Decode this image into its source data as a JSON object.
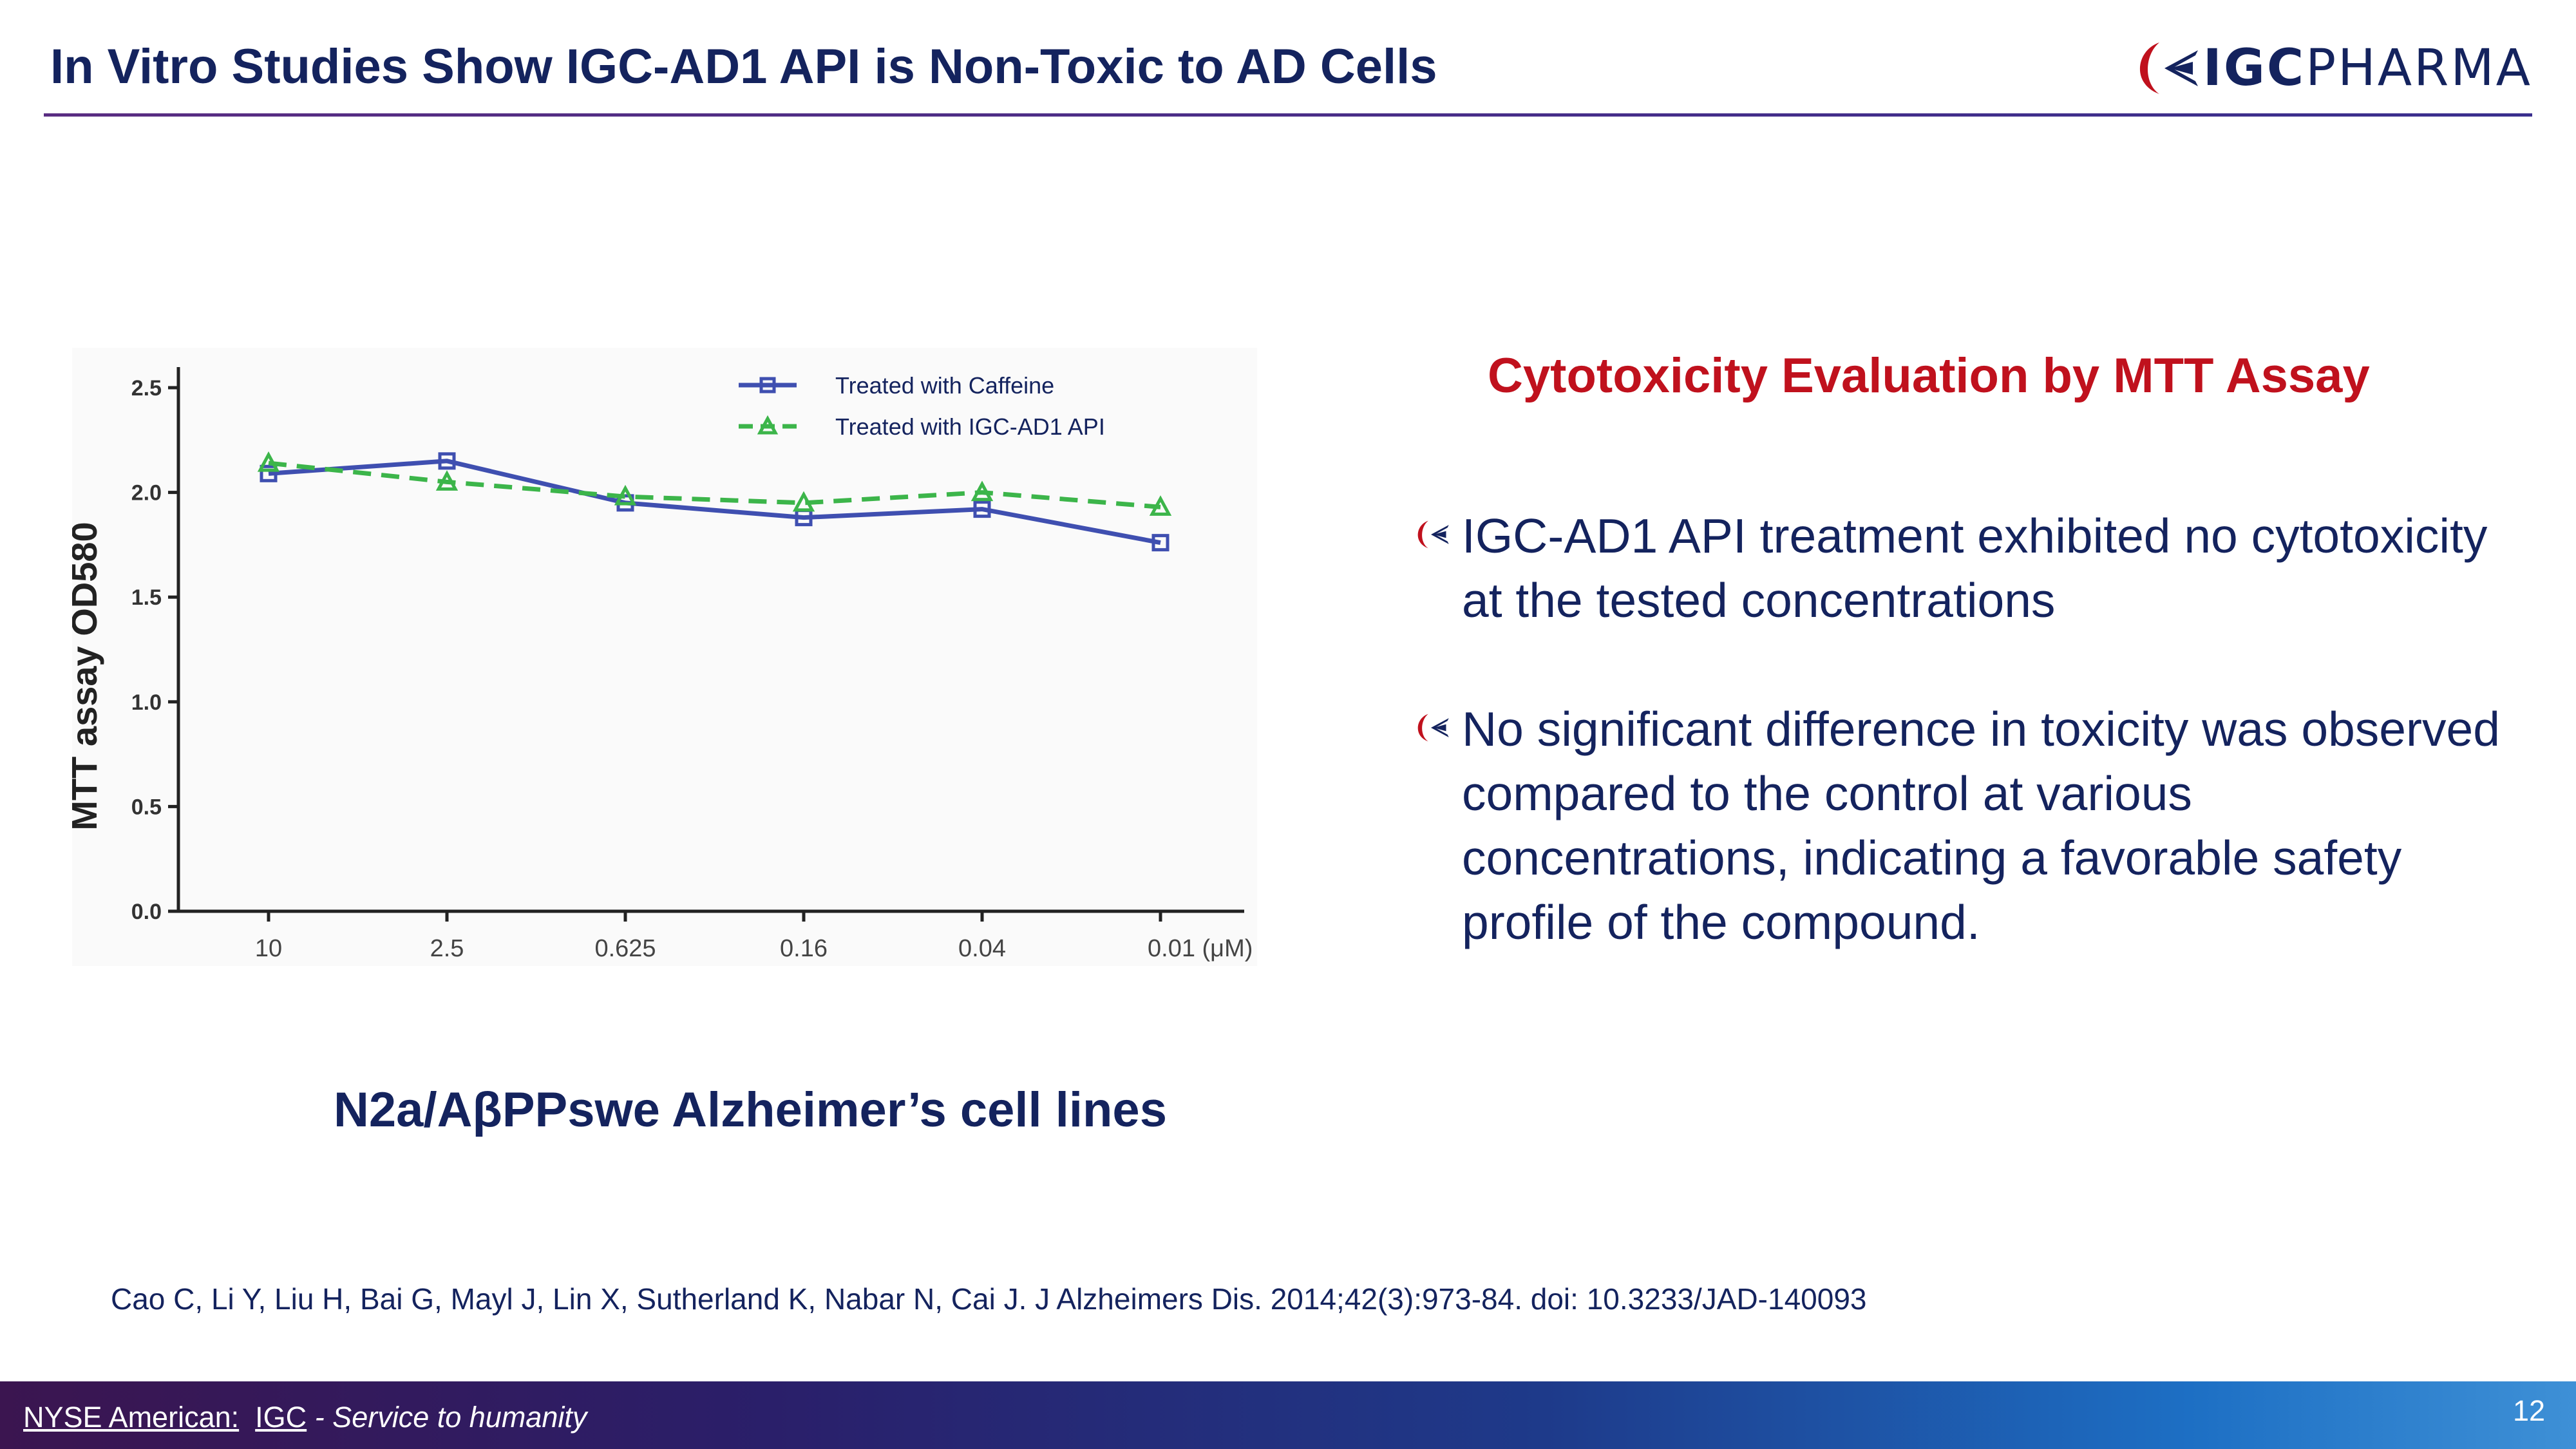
{
  "header": {
    "title": "In Vitro Studies Show IGC-AD1 API is Non-Toxic to AD Cells",
    "logo_bold": "IGC",
    "logo_light": "PHARMA"
  },
  "colors": {
    "navy": "#14235e",
    "red": "#c0111d",
    "caffeine": "#3f4fb0",
    "igc": "#3cb54a"
  },
  "chart_data": {
    "type": "line",
    "categories": [
      "10",
      "2.5",
      "0.625",
      "0.16",
      "0.04",
      "0.01 (μM)"
    ],
    "ylabel": "MTT assay OD580",
    "xlabel": "",
    "ylim": [
      0,
      2.5
    ],
    "yticks": [
      "0.0",
      "0.5",
      "1.0",
      "1.5",
      "2.0",
      "2.5"
    ],
    "series": [
      {
        "name": "Treated with Caffeine",
        "values": [
          2.09,
          2.15,
          1.95,
          1.88,
          1.92,
          1.76
        ]
      },
      {
        "name": "Treated with IGC-AD1 API",
        "values": [
          2.14,
          2.05,
          1.98,
          1.95,
          2.0,
          1.93
        ]
      }
    ]
  },
  "caption": "N2a/AβPPswe Alzheimer’s cell lines",
  "subtitle": "Cytotoxicity Evaluation by MTT Assay",
  "bullets": [
    "IGC-AD1 API treatment exhibited no cytotoxicity at the tested concentrations",
    "No significant difference in toxicity was observed compared to the control at various concentrations, indicating a favorable safety profile of the compound."
  ],
  "citation": "Cao C, Li Y, Liu H, Bai G, Mayl J, Lin X, Sutherland K, Nabar N, Cai J. J Alzheimers Dis. 2014;42(3):973-84. doi: 10.3233/JAD-140093",
  "footer": {
    "exchange": "NYSE American:",
    "ticker": "IGC",
    "tagline": "- Service to humanity",
    "page": "12"
  }
}
